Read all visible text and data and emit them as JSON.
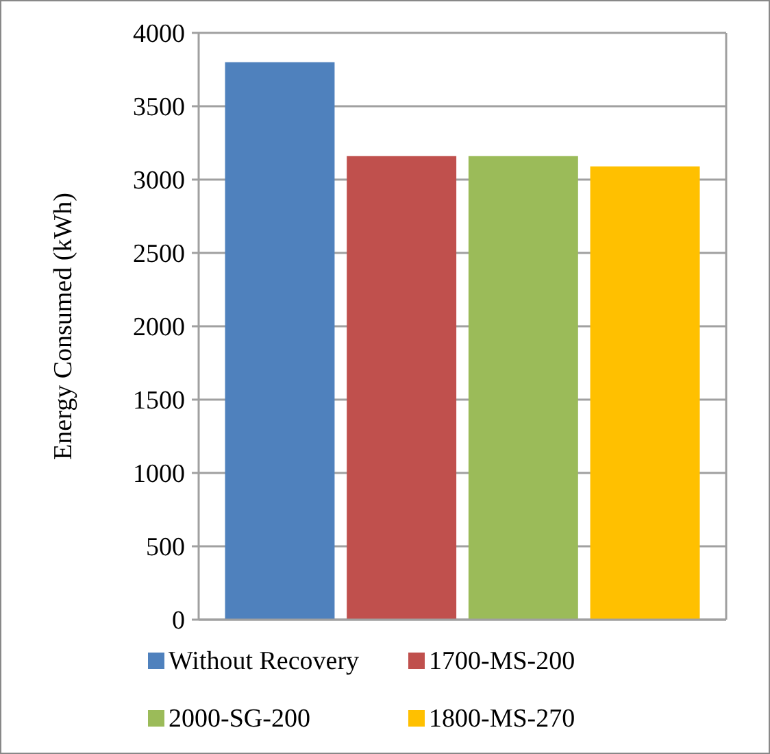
{
  "chart_data": {
    "type": "bar",
    "ylabel": "Energy  Consumed  (kWh)",
    "categories": [
      null
    ],
    "series": [
      {
        "name": "Without Recovery",
        "color": "#4f81bd",
        "values": [
          3800
        ]
      },
      {
        "name": "1700-MS-200",
        "color": "#c0504d",
        "values": [
          3160
        ]
      },
      {
        "name": "2000-SG-200",
        "color": "#9bbb59",
        "values": [
          3160
        ]
      },
      {
        "name": "1800-MS-270",
        "color": "#ffc000",
        "values": [
          3090
        ]
      }
    ],
    "ylim": [
      0,
      4000
    ],
    "yticks": [
      0,
      500,
      1000,
      1500,
      2000,
      2500,
      3000,
      3500,
      4000
    ],
    "grid": "y",
    "legend": "bottom"
  }
}
